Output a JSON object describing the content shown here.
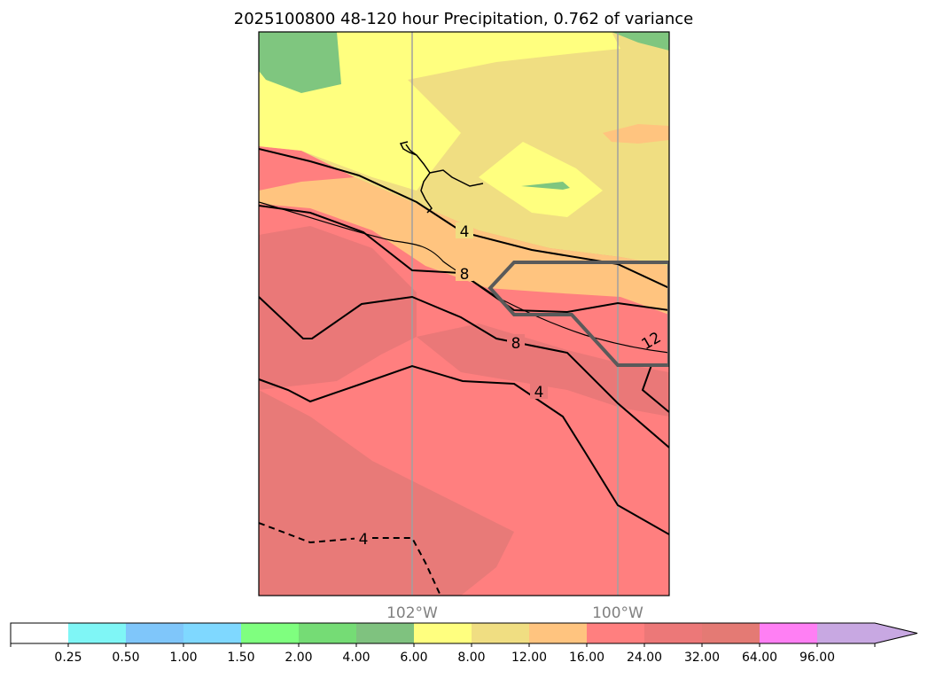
{
  "title": "2025100800 48-120 hour Precipitation, 0.762 of variance",
  "longitude_labels": [
    "102°W",
    "100°W"
  ],
  "contour_labels": [
    "4",
    "8",
    "8",
    "4",
    "12",
    "4"
  ],
  "colorbar": {
    "tick_labels": [
      "0.25",
      "0.50",
      "1.00",
      "1.50",
      "2.00",
      "4.00",
      "6.00",
      "8.00",
      "12.00",
      "16.00",
      "24.00",
      "32.00",
      "64.00",
      "96.00"
    ],
    "colors": [
      "#ffffff",
      "#7ff6f6",
      "#7fc6fa",
      "#7fd8ff",
      "#7fff7f",
      "#75dc75",
      "#7fc27f",
      "#ffff7f",
      "#f0de82",
      "#ffc47f",
      "#ff7f7f",
      "#ec7878",
      "#e47a74",
      "#ff7ff4",
      "#c8a8e2"
    ],
    "extend": "max"
  },
  "colors": {
    "frame": "#000000",
    "gridline": "#a0a0a0",
    "region_outline": "#5a5a5a"
  }
}
